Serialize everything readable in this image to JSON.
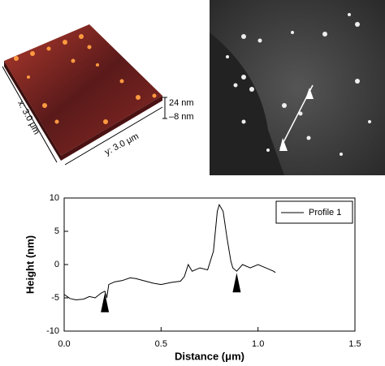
{
  "image_3d": {
    "x_label": "x: 3.0 μm",
    "y_label": "y: 3.0 μm",
    "z_max_label": "24 nm",
    "z_min_label": "–8 nm"
  },
  "chart_data": {
    "type": "line",
    "x_label": "Distance (μm)",
    "y_label": "Height (nm)",
    "x": [
      0,
      0.03,
      0.06,
      0.1,
      0.13,
      0.16,
      0.19,
      0.21,
      0.22,
      0.23,
      0.26,
      0.3,
      0.34,
      0.37,
      0.42,
      0.46,
      0.5,
      0.55,
      0.6,
      0.62,
      0.64,
      0.66,
      0.7,
      0.74,
      0.77,
      0.79,
      0.8,
      0.82,
      0.84,
      0.86,
      0.87,
      0.89,
      0.92,
      0.96,
      1.0,
      1.04,
      1.08,
      1.09
    ],
    "series": [
      {
        "name": "Profile 1",
        "color": "#000000",
        "values": [
          -4.5,
          -5.1,
          -5.3,
          -5.2,
          -4.8,
          -5.0,
          -4.3,
          -4.0,
          -5.0,
          -3.0,
          -2.6,
          -2.4,
          -2.0,
          -2.1,
          -2.5,
          -2.8,
          -3.0,
          -2.7,
          -2.5,
          -1.8,
          0.0,
          -1.0,
          -0.5,
          -0.8,
          2.0,
          8.0,
          9.0,
          8.0,
          4.0,
          0.5,
          -0.5,
          -1.0,
          0.0,
          -0.5,
          0.0,
          -0.5,
          -1.0,
          -1.2
        ]
      }
    ],
    "markers_x": [
      0.21,
      0.89
    ],
    "xlim": [
      0,
      1.5
    ],
    "xticks": [
      {
        "value": 0,
        "label": "0.0"
      },
      0.5,
      {
        "value": 1,
        "label": "1.0"
      },
      1.5
    ],
    "ylim": [
      -10,
      10
    ],
    "yticks": [
      -10,
      -5,
      0,
      5,
      10
    ],
    "legend": "top-right"
  }
}
